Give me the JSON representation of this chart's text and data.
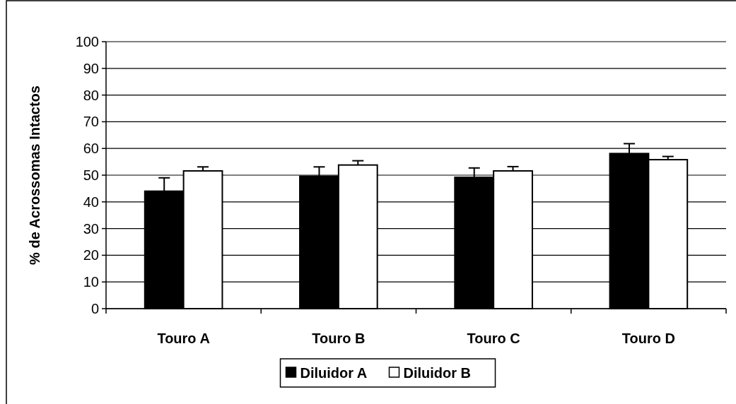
{
  "chart_data": {
    "type": "bar",
    "ylabel": "% de Acrossomas Intactos",
    "categories": [
      "Touro A",
      "Touro B",
      "Touro C",
      "Touro D"
    ],
    "series": [
      {
        "name": "Diluidor A",
        "color": "#000000",
        "values": [
          44.0,
          49.6,
          49.2,
          58.1
        ],
        "errors": [
          [
            44.0,
            49.0
          ],
          [
            49.6,
            53.1
          ],
          [
            49.2,
            52.7
          ],
          [
            58.1,
            61.8
          ]
        ]
      },
      {
        "name": "Diluidor B",
        "color": "#ffffff",
        "values": [
          51.6,
          53.8,
          51.6,
          55.8
        ],
        "errors": [
          [
            51.6,
            53.1
          ],
          [
            53.8,
            55.4
          ],
          [
            51.6,
            53.2
          ],
          [
            55.8,
            57.0
          ]
        ]
      }
    ],
    "ylim": [
      0,
      100
    ],
    "yticks": [
      0,
      10,
      20,
      30,
      40,
      50,
      60,
      70,
      80,
      90,
      100
    ],
    "grid": "y",
    "legend": "bottom"
  }
}
